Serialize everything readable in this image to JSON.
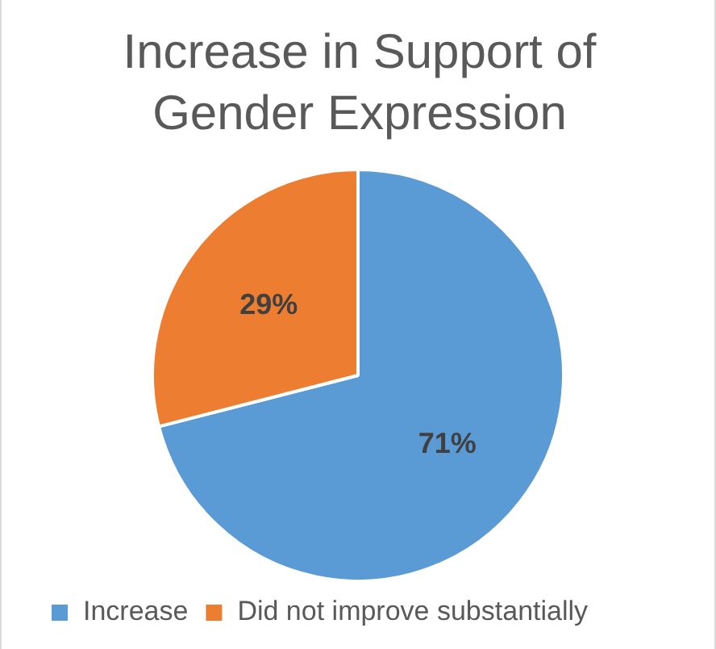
{
  "chart_data": {
    "type": "pie",
    "title": "Increase in Support of Gender Expression",
    "categories": [
      "Increase",
      "Did not improve substantially"
    ],
    "values": [
      71,
      29
    ],
    "colors": [
      "#5b9bd5",
      "#ed7d31"
    ],
    "value_labels": [
      "71%",
      "29%"
    ],
    "legend": "bottom left"
  }
}
